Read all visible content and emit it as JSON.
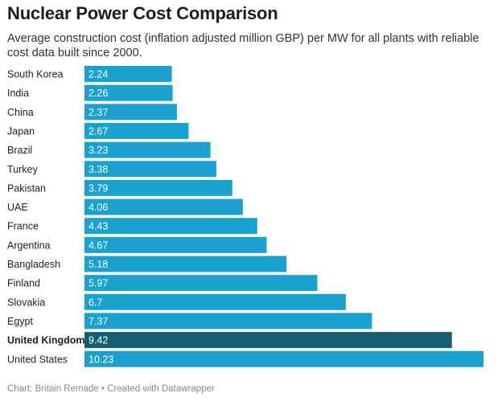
{
  "title": "Nuclear Power Cost Comparison",
  "subtitle": "Average construction cost (inflation adjusted million GBP) per MW for all plants with reliable cost data built since 2000.",
  "footer": {
    "source": "Chart: Britain Remade",
    "separator": "•",
    "credit": "Created with Datawrapper"
  },
  "colors": {
    "bar": "#1ba1cf",
    "highlight_bar": "#155d72",
    "bar_label": "#ffffff",
    "category_label": "#222222"
  },
  "chart_data": {
    "type": "bar",
    "orientation": "horizontal",
    "categories": [
      "South Korea",
      "India",
      "China",
      "Japan",
      "Brazil",
      "Turkey",
      "Pakistan",
      "UAE",
      "France",
      "Argentina",
      "Bangladesh",
      "Finland",
      "Slovakia",
      "Egypt",
      "United Kingdom",
      "United States"
    ],
    "values": [
      2.24,
      2.26,
      2.37,
      2.67,
      3.23,
      3.38,
      3.79,
      4.06,
      4.43,
      4.67,
      5.18,
      5.97,
      6.7,
      7.37,
      9.42,
      10.23
    ],
    "value_labels": [
      "2.24",
      "2.26",
      "2.37",
      "2.67",
      "3.23",
      "3.38",
      "3.79",
      "4.06",
      "4.43",
      "4.67",
      "5.18",
      "5.97",
      "6.7",
      "7.37",
      "9.42",
      "10.23"
    ],
    "highlighted": [
      "United Kingdom"
    ],
    "title": "Nuclear Power Cost Comparison",
    "xlabel": "",
    "ylabel": "",
    "xlim": [
      0,
      10.23
    ],
    "grid": false,
    "legend": "none"
  }
}
